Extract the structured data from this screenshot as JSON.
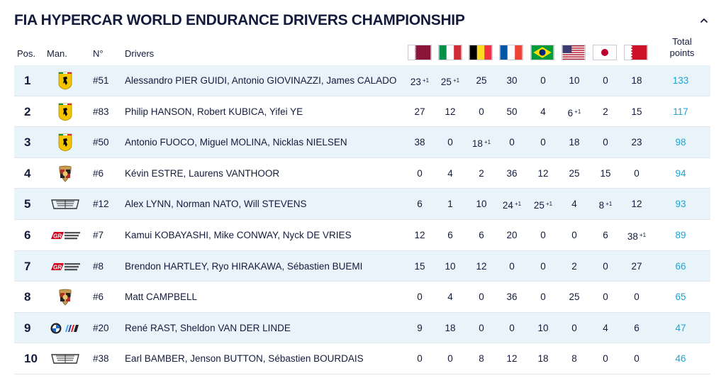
{
  "title": "FIA HYPERCAR WORLD ENDURANCE DRIVERS CHAMPIONSHIP",
  "columns": {
    "pos": "Pos.",
    "man": "Man.",
    "num": "N°",
    "drivers": "Drivers",
    "total_line1": "Total",
    "total_line2": "points"
  },
  "races": [
    {
      "flag": "qatar-flag-icon"
    },
    {
      "flag": "italy-flag-icon"
    },
    {
      "flag": "belgium-flag-icon"
    },
    {
      "flag": "france-flag-icon"
    },
    {
      "flag": "brazil-flag-icon"
    },
    {
      "flag": "usa-flag-icon"
    },
    {
      "flag": "japan-flag-icon"
    },
    {
      "flag": "bahrain-flag-icon"
    }
  ],
  "rows": [
    {
      "pos": "1",
      "logo": "ferrari-logo-icon",
      "num": "#51",
      "drivers": "Alessandro PIER GUIDI, Antonio GIOVINAZZI, James CALADO",
      "points": [
        [
          "23",
          "+1"
        ],
        [
          "25",
          "+1"
        ],
        [
          "25",
          ""
        ],
        [
          "30",
          ""
        ],
        [
          "0",
          ""
        ],
        [
          "10",
          ""
        ],
        [
          "0",
          ""
        ],
        [
          "18",
          ""
        ]
      ],
      "total": "133"
    },
    {
      "pos": "2",
      "logo": "ferrari-logo-icon",
      "num": "#83",
      "drivers": "Philip HANSON, Robert KUBICA, Yifei YE",
      "points": [
        [
          "27",
          ""
        ],
        [
          "12",
          ""
        ],
        [
          "0",
          ""
        ],
        [
          "50",
          ""
        ],
        [
          "4",
          ""
        ],
        [
          "6",
          "+1"
        ],
        [
          "2",
          ""
        ],
        [
          "15",
          ""
        ]
      ],
      "total": "117"
    },
    {
      "pos": "3",
      "logo": "ferrari-logo-icon",
      "num": "#50",
      "drivers": "Antonio FUOCO, Miguel MOLINA, Nicklas NIELSEN",
      "points": [
        [
          "38",
          ""
        ],
        [
          "0",
          ""
        ],
        [
          "18",
          "+1"
        ],
        [
          "0",
          ""
        ],
        [
          "0",
          ""
        ],
        [
          "18",
          ""
        ],
        [
          "0",
          ""
        ],
        [
          "23",
          ""
        ]
      ],
      "total": "98"
    },
    {
      "pos": "4",
      "logo": "porsche-logo-icon",
      "num": "#6",
      "drivers": "Kévin ESTRE, Laurens VANTHOOR",
      "points": [
        [
          "0",
          ""
        ],
        [
          "4",
          ""
        ],
        [
          "2",
          ""
        ],
        [
          "36",
          ""
        ],
        [
          "12",
          ""
        ],
        [
          "25",
          ""
        ],
        [
          "15",
          ""
        ],
        [
          "0",
          ""
        ]
      ],
      "total": "94"
    },
    {
      "pos": "5",
      "logo": "cadillac-logo-icon",
      "num": "#12",
      "drivers": "Alex LYNN, Norman NATO, Will STEVENS",
      "points": [
        [
          "6",
          ""
        ],
        [
          "1",
          ""
        ],
        [
          "10",
          ""
        ],
        [
          "24",
          "+1"
        ],
        [
          "25",
          "+1"
        ],
        [
          "4",
          ""
        ],
        [
          "8",
          "+1"
        ],
        [
          "12",
          ""
        ]
      ],
      "total": "93"
    },
    {
      "pos": "6",
      "logo": "toyota-gr-logo-icon",
      "num": "#7",
      "drivers": "Kamui KOBAYASHI, Mike CONWAY, Nyck DE VRIES",
      "points": [
        [
          "12",
          ""
        ],
        [
          "6",
          ""
        ],
        [
          "6",
          ""
        ],
        [
          "20",
          ""
        ],
        [
          "0",
          ""
        ],
        [
          "0",
          ""
        ],
        [
          "6",
          ""
        ],
        [
          "38",
          "+1"
        ]
      ],
      "total": "89"
    },
    {
      "pos": "7",
      "logo": "toyota-gr-logo-icon",
      "num": "#8",
      "drivers": "Brendon HARTLEY, Ryo HIRAKAWA, Sébastien BUEMI",
      "points": [
        [
          "15",
          ""
        ],
        [
          "10",
          ""
        ],
        [
          "12",
          ""
        ],
        [
          "0",
          ""
        ],
        [
          "0",
          ""
        ],
        [
          "2",
          ""
        ],
        [
          "0",
          ""
        ],
        [
          "27",
          ""
        ]
      ],
      "total": "66"
    },
    {
      "pos": "8",
      "logo": "porsche-logo-icon",
      "num": "#6",
      "drivers": "Matt CAMPBELL",
      "points": [
        [
          "0",
          ""
        ],
        [
          "4",
          ""
        ],
        [
          "0",
          ""
        ],
        [
          "36",
          ""
        ],
        [
          "0",
          ""
        ],
        [
          "25",
          ""
        ],
        [
          "0",
          ""
        ],
        [
          "0",
          ""
        ]
      ],
      "total": "65"
    },
    {
      "pos": "9",
      "logo": "bmw-m-logo-icon",
      "num": "#20",
      "drivers": "René RAST, Sheldon VAN DER LINDE",
      "points": [
        [
          "9",
          ""
        ],
        [
          "18",
          ""
        ],
        [
          "0",
          ""
        ],
        [
          "0",
          ""
        ],
        [
          "10",
          ""
        ],
        [
          "0",
          ""
        ],
        [
          "4",
          ""
        ],
        [
          "6",
          ""
        ]
      ],
      "total": "47"
    },
    {
      "pos": "10",
      "logo": "cadillac-logo-icon",
      "num": "#38",
      "drivers": "Earl BAMBER, Jenson BUTTON, Sébastien BOURDAIS",
      "points": [
        [
          "0",
          ""
        ],
        [
          "0",
          ""
        ],
        [
          "8",
          ""
        ],
        [
          "12",
          ""
        ],
        [
          "18",
          ""
        ],
        [
          "8",
          ""
        ],
        [
          "0",
          ""
        ],
        [
          "0",
          ""
        ]
      ],
      "total": "46"
    }
  ]
}
